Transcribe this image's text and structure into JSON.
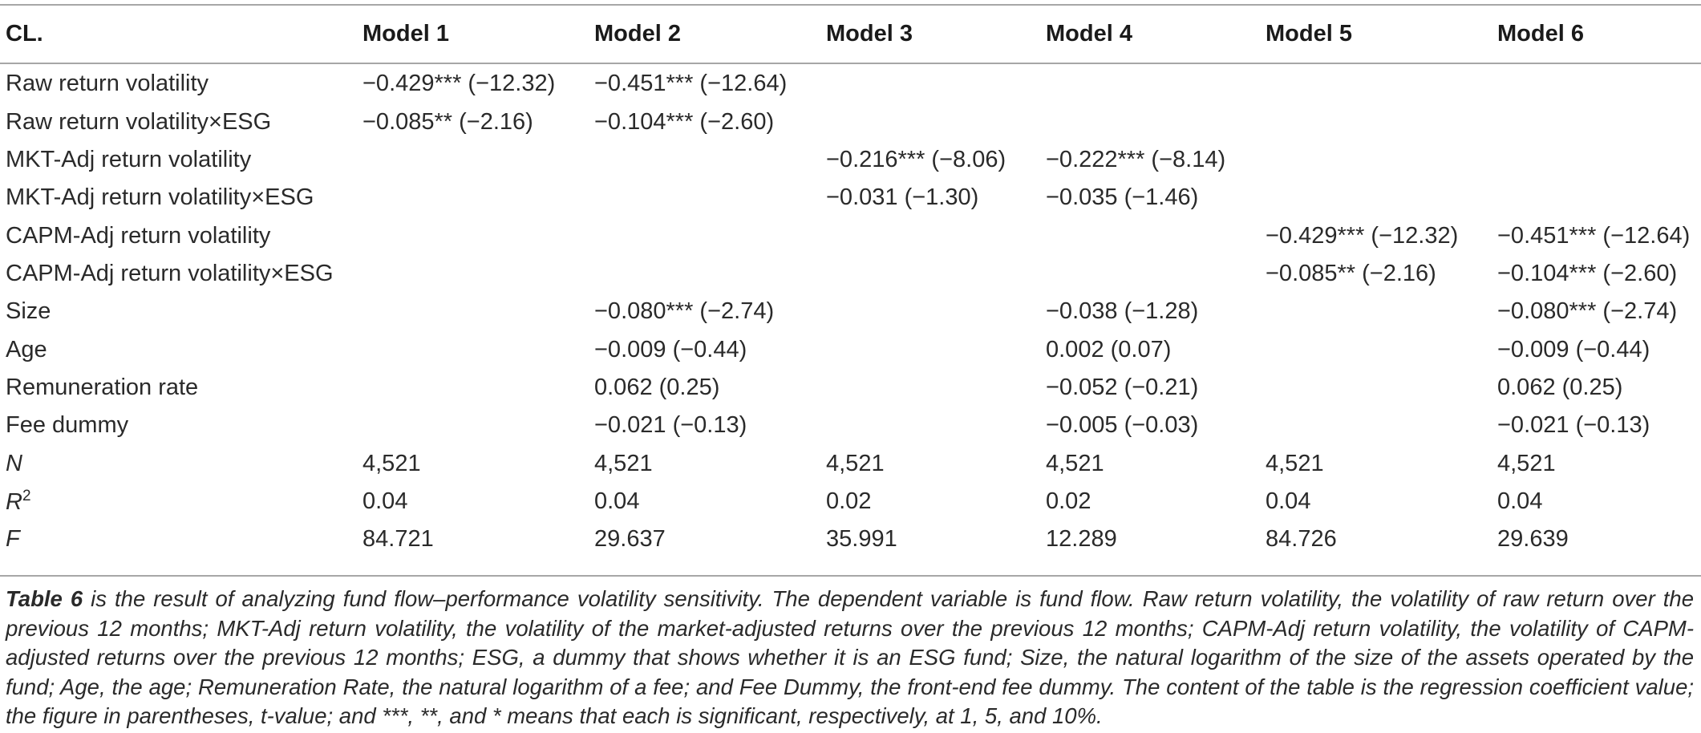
{
  "table": {
    "headers": [
      "CL.",
      "Model 1",
      "Model 2",
      "Model 3",
      "Model 4",
      "Model 5",
      "Model 6"
    ],
    "rows": [
      {
        "label": "Raw return volatility",
        "cells": [
          "−0.429*** (−12.32)",
          "−0.451*** (−12.64)",
          "",
          "",
          "",
          ""
        ]
      },
      {
        "label": "Raw return volatility×ESG",
        "cells": [
          "−0.085** (−2.16)",
          "−0.104*** (−2.60)",
          "",
          "",
          "",
          ""
        ]
      },
      {
        "label": "MKT-Adj return volatility",
        "cells": [
          "",
          "",
          "−0.216*** (−8.06)",
          "−0.222*** (−8.14)",
          "",
          ""
        ]
      },
      {
        "label": "MKT-Adj return volatility×ESG",
        "cells": [
          "",
          "",
          "−0.031 (−1.30)",
          "−0.035 (−1.46)",
          "",
          ""
        ]
      },
      {
        "label": "CAPM-Adj return volatility",
        "cells": [
          "",
          "",
          "",
          "",
          "−0.429*** (−12.32)",
          "−0.451*** (−12.64)"
        ]
      },
      {
        "label": "CAPM-Adj return volatility×ESG",
        "cells": [
          "",
          "",
          "",
          "",
          "−0.085** (−2.16)",
          "−0.104*** (−2.60)"
        ]
      },
      {
        "label": "Size",
        "cells": [
          "",
          "−0.080*** (−2.74)",
          "",
          "−0.038 (−1.28)",
          "",
          "−0.080*** (−2.74)"
        ]
      },
      {
        "label": "Age",
        "cells": [
          "",
          "−0.009 (−0.44)",
          "",
          "0.002 (0.07)",
          "",
          "−0.009 (−0.44)"
        ]
      },
      {
        "label": "Remuneration rate",
        "cells": [
          "",
          "0.062 (0.25)",
          "",
          "−0.052 (−0.21)",
          "",
          "0.062 (0.25)"
        ]
      },
      {
        "label": "Fee dummy",
        "cells": [
          "",
          "−0.021 (−0.13)",
          "",
          "−0.005 (−0.03)",
          "",
          "−0.021 (−0.13)"
        ]
      }
    ],
    "stats": [
      {
        "label": "N",
        "sup": "",
        "cells": [
          "4,521",
          "4,521",
          "4,521",
          "4,521",
          "4,521",
          "4,521"
        ]
      },
      {
        "label": "R",
        "sup": "2",
        "cells": [
          "0.04",
          "0.04",
          "0.02",
          "0.02",
          "0.04",
          "0.04"
        ]
      },
      {
        "label": "F",
        "sup": "",
        "cells": [
          "84.721",
          "29.637",
          "35.991",
          "12.289",
          "84.726",
          "29.639"
        ]
      }
    ]
  },
  "note": {
    "table_ref": "Table 6",
    "text": " is the result of analyzing fund flow–performance volatility sensitivity. The dependent variable is fund flow. Raw return volatility, the volatility of raw return over the previous 12 months; MKT-Adj return volatility, the volatility of the market-adjusted returns over the previous 12 months; CAPM-Adj return volatility, the volatility of CAPM-adjusted returns over the previous 12 months; ESG, a dummy that shows whether it is an ESG fund; Size, the natural logarithm of the size of the assets operated by the fund; Age, the age; Remuneration Rate, the natural logarithm of a fee; and Fee Dummy, the front-end fee dummy. The content of the table is the regression coefficient value; the figure in parentheses, t-value; and ***, **, and * means that each is significant, respectively, at 1, 5, and 10%."
  }
}
